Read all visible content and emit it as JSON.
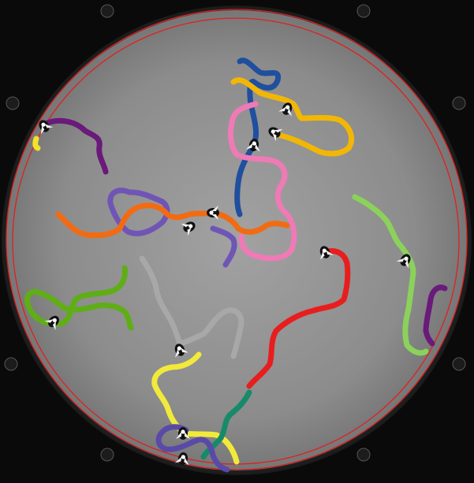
{
  "scene": {
    "description_colors": {
      "background": "#0a0a0a",
      "arena_outer": "#3a3a3a",
      "arena_floor": "#8e8e8e",
      "boundary_ring": "#e02020"
    },
    "trails": [
      {
        "name": "trail-blue",
        "color": "#1f4f9e"
      },
      {
        "name": "trail-gold",
        "color": "#f2b705"
      },
      {
        "name": "trail-pink",
        "color": "#f07ab6"
      },
      {
        "name": "trail-dark-purple-left",
        "color": "#6a1a7a"
      },
      {
        "name": "trail-lavender",
        "color": "#6f55b5"
      },
      {
        "name": "trail-orange",
        "color": "#f26b12"
      },
      {
        "name": "trail-red",
        "color": "#e81e1e"
      },
      {
        "name": "trail-light-green",
        "color": "#8bd25a"
      },
      {
        "name": "trail-dark-purple-right",
        "color": "#6a1a7a"
      },
      {
        "name": "trail-green",
        "color": "#5fae16"
      },
      {
        "name": "trail-gray",
        "color": "#a8a8a8"
      },
      {
        "name": "trail-yellow",
        "color": "#f2ea3a"
      },
      {
        "name": "trail-teal",
        "color": "#178a6a"
      },
      {
        "name": "trail-indigo",
        "color": "#5a4aa8"
      },
      {
        "name": "trail-yellow-small",
        "color": "#f5e02a"
      }
    ]
  }
}
